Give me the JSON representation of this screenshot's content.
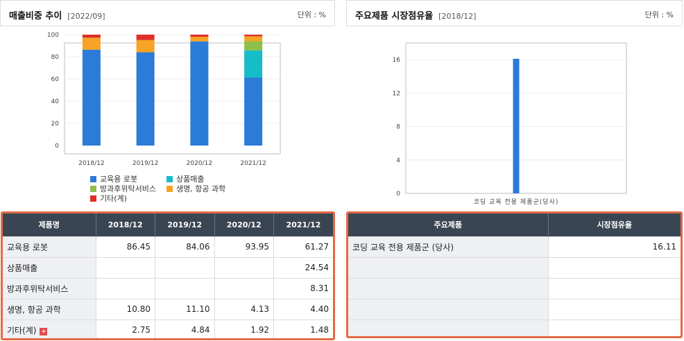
{
  "left": {
    "title": "매출비중 추이",
    "date": "[2022/09]",
    "unit": "단위 : %",
    "legend": [
      {
        "label": "교육용 로봇",
        "color": "#2b7bd8"
      },
      {
        "label": "상품매출",
        "color": "#17bcc9"
      },
      {
        "label": "방과후위탁서비스",
        "color": "#8fbf48"
      },
      {
        "label": "생명, 항공 과학",
        "color": "#f7a325"
      },
      {
        "label": "기타(계)",
        "color": "#df2e26"
      }
    ],
    "table": {
      "headers": [
        "제품명",
        "2018/12",
        "2019/12",
        "2020/12",
        "2021/12"
      ],
      "rows": [
        [
          "교육용 로봇",
          "86.45",
          "84.06",
          "93.95",
          "61.27"
        ],
        [
          "상품매출",
          "",
          "",
          "",
          "24.54"
        ],
        [
          "방과후위탁서비스",
          "",
          "",
          "",
          "8.31"
        ],
        [
          "생명, 항공 과학",
          "10.80",
          "11.10",
          "4.13",
          "4.40"
        ],
        [
          "기타(계)",
          "2.75",
          "4.84",
          "1.92",
          "1.48"
        ]
      ]
    }
  },
  "right": {
    "title": "주요제품 시장점유율",
    "date": "[2018/12]",
    "unit": "단위 : %",
    "table": {
      "headers": [
        "주요제품",
        "시장점유율"
      ],
      "rows": [
        [
          "코딩 교육 전용 제품군 (당사)",
          "16.11"
        ],
        [
          "",
          ""
        ],
        [
          "",
          ""
        ],
        [
          "",
          ""
        ],
        [
          "",
          ""
        ]
      ]
    }
  },
  "chart_data": [
    {
      "type": "bar",
      "stacked": true,
      "categories": [
        "2018/12",
        "2019/12",
        "2020/12",
        "2021/12"
      ],
      "ylim": [
        0,
        100
      ],
      "yticks": [
        0,
        20,
        40,
        60,
        80,
        100
      ],
      "grid": true,
      "legend_position": "bottom",
      "series": [
        {
          "name": "교육용 로봇",
          "color": "#2b7bd8",
          "values": [
            86.45,
            84.06,
            93.95,
            61.27
          ]
        },
        {
          "name": "상품매출",
          "color": "#17bcc9",
          "values": [
            0,
            0,
            0,
            24.54
          ]
        },
        {
          "name": "방과후위탁서비스",
          "color": "#8fbf48",
          "values": [
            0,
            0,
            0,
            8.31
          ]
        },
        {
          "name": "생명, 항공 과학",
          "color": "#f7a325",
          "values": [
            10.8,
            11.1,
            4.13,
            4.4
          ]
        },
        {
          "name": "기타(계)",
          "color": "#df2e26",
          "values": [
            2.75,
            4.84,
            1.92,
            1.48
          ]
        }
      ]
    },
    {
      "type": "bar",
      "categories": [
        "코딩 교육 전용 제품군(당사)"
      ],
      "values": [
        16.11
      ],
      "ylim": [
        0,
        18
      ],
      "yticks": [
        0,
        4,
        8,
        12,
        16
      ],
      "grid": true,
      "color": "#2b7bd8"
    }
  ]
}
